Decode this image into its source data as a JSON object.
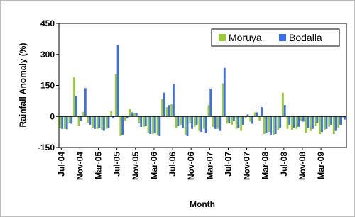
{
  "chart_data": {
    "type": "bar",
    "y_label": "Rainfall Anomaly (%)",
    "x_label": "Month",
    "categories": [
      "Jul-04",
      null,
      null,
      null,
      "Nov-04",
      null,
      null,
      null,
      "Mar-05",
      null,
      null,
      null,
      "Jul-05",
      null,
      null,
      null,
      "Nov-05",
      null,
      null,
      null,
      "Mar-06",
      null,
      null,
      null,
      "Jul-06",
      null,
      null,
      null,
      "Nov-06",
      null,
      null,
      null,
      "Mar-07",
      null,
      null,
      null,
      "Jul-07",
      null,
      null,
      null,
      "Nov-07",
      null,
      null,
      null,
      "Mar-08",
      null,
      null,
      null,
      "Jul-08",
      null,
      null,
      null,
      "Nov-08",
      null,
      null,
      null,
      "Mar-09",
      null,
      null,
      null,
      null,
      null
    ],
    "series": [
      {
        "name": "Moruya",
        "color": "#99cc33",
        "values": [
          -58,
          -60,
          -30,
          190,
          -45,
          22,
          -30,
          -55,
          -60,
          -65,
          -60,
          25,
          205,
          -95,
          -20,
          35,
          15,
          -30,
          -50,
          -80,
          -85,
          -90,
          85,
          45,
          60,
          -55,
          -40,
          -90,
          -30,
          -50,
          -70,
          -60,
          55,
          -50,
          -60,
          160,
          -35,
          -40,
          -60,
          -70,
          -10,
          -25,
          20,
          -20,
          -85,
          -75,
          -90,
          -65,
          115,
          -60,
          -65,
          -60,
          -20,
          -80,
          -70,
          -45,
          -85,
          -65,
          -50,
          -85,
          -55,
          -5
        ]
      },
      {
        "name": "Bodalla",
        "color": "#3a6ff0",
        "values": [
          -60,
          -62,
          -35,
          100,
          -20,
          137,
          -40,
          -60,
          -55,
          -70,
          -55,
          -10,
          345,
          -90,
          -10,
          20,
          15,
          -50,
          -45,
          -85,
          -80,
          -95,
          115,
          55,
          155,
          -45,
          -55,
          -95,
          -60,
          -40,
          -75,
          -80,
          135,
          -60,
          -70,
          235,
          -30,
          -20,
          -55,
          -40,
          10,
          -35,
          20,
          45,
          -80,
          -90,
          -85,
          -55,
          55,
          -40,
          -55,
          -50,
          -25,
          -55,
          -60,
          -30,
          -75,
          -60,
          -40,
          -70,
          -40,
          -15
        ]
      }
    ],
    "ylim": [
      -150,
      450
    ],
    "yticks": [
      -150,
      0,
      150,
      300,
      450
    ],
    "legend": "top-right",
    "grid": false
  }
}
